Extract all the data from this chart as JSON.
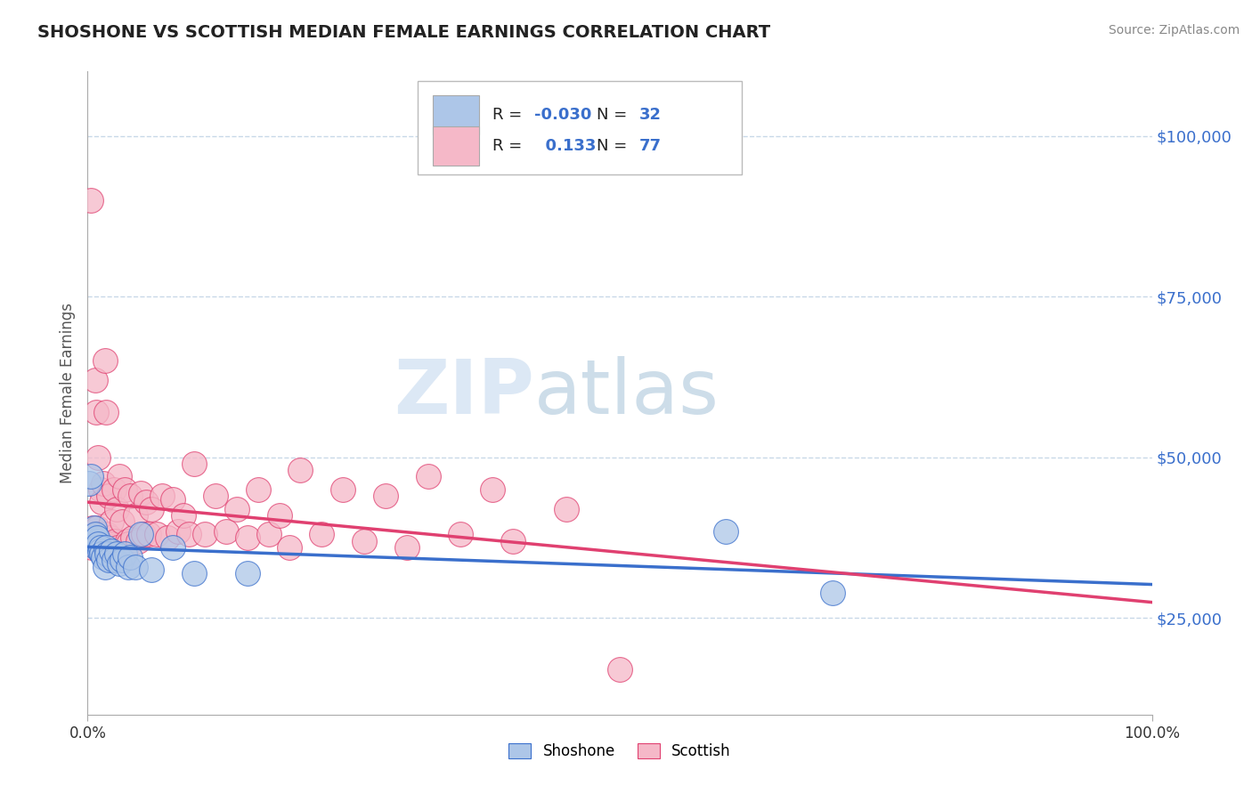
{
  "title": "SHOSHONE VS SCOTTISH MEDIAN FEMALE EARNINGS CORRELATION CHART",
  "source": "Source: ZipAtlas.com",
  "ylabel": "Median Female Earnings",
  "xlim": [
    0.0,
    1.0
  ],
  "ylim": [
    10000,
    110000
  ],
  "yticks": [
    25000,
    50000,
    75000,
    100000
  ],
  "ytick_labels": [
    "$25,000",
    "$50,000",
    "$75,000",
    "$100,000"
  ],
  "xtick_labels": [
    "0.0%",
    "100.0%"
  ],
  "shoshone_color": "#adc6e8",
  "scottish_color": "#f5b8c8",
  "shoshone_line_color": "#3a6fcc",
  "scottish_line_color": "#e04070",
  "shoshone_R": -0.03,
  "shoshone_N": 32,
  "scottish_R": 0.133,
  "scottish_N": 77,
  "background_color": "#ffffff",
  "grid_color": "#c8d8e8",
  "watermark_color": "#dce8f5",
  "shoshone_scatter_x": [
    0.001,
    0.003,
    0.005,
    0.006,
    0.007,
    0.008,
    0.009,
    0.01,
    0.011,
    0.012,
    0.013,
    0.015,
    0.016,
    0.017,
    0.018,
    0.02,
    0.022,
    0.025,
    0.027,
    0.03,
    0.032,
    0.035,
    0.038,
    0.04,
    0.045,
    0.05,
    0.06,
    0.08,
    0.1,
    0.15,
    0.6,
    0.7
  ],
  "shoshone_scatter_y": [
    46000,
    47000,
    37000,
    39000,
    38000,
    36000,
    37500,
    36500,
    35500,
    36000,
    35000,
    34500,
    33000,
    36000,
    35000,
    34000,
    35500,
    34000,
    35000,
    33500,
    34000,
    35000,
    33000,
    34500,
    33000,
    38000,
    32500,
    36000,
    32000,
    32000,
    38500,
    29000
  ],
  "scottish_scatter_x": [
    0.001,
    0.002,
    0.003,
    0.004,
    0.005,
    0.005,
    0.006,
    0.006,
    0.007,
    0.008,
    0.008,
    0.009,
    0.009,
    0.01,
    0.01,
    0.011,
    0.012,
    0.012,
    0.013,
    0.014,
    0.015,
    0.015,
    0.016,
    0.017,
    0.018,
    0.019,
    0.02,
    0.021,
    0.022,
    0.023,
    0.025,
    0.026,
    0.027,
    0.028,
    0.03,
    0.032,
    0.035,
    0.037,
    0.038,
    0.04,
    0.042,
    0.045,
    0.047,
    0.05,
    0.052,
    0.055,
    0.057,
    0.06,
    0.065,
    0.07,
    0.075,
    0.08,
    0.085,
    0.09,
    0.095,
    0.1,
    0.11,
    0.12,
    0.13,
    0.14,
    0.15,
    0.16,
    0.17,
    0.18,
    0.19,
    0.2,
    0.22,
    0.24,
    0.26,
    0.28,
    0.3,
    0.32,
    0.35,
    0.38,
    0.4,
    0.45,
    0.5
  ],
  "scottish_scatter_y": [
    38000,
    37000,
    90000,
    36000,
    38000,
    39000,
    37000,
    38000,
    62000,
    57000,
    38000,
    39000,
    36500,
    50000,
    38000,
    37000,
    45000,
    37000,
    43000,
    38000,
    46000,
    37500,
    65000,
    57000,
    38000,
    36000,
    44000,
    37500,
    40000,
    36500,
    45000,
    37000,
    42000,
    36000,
    47000,
    40000,
    45000,
    37000,
    36500,
    44000,
    37500,
    41000,
    37000,
    44500,
    38000,
    43000,
    38000,
    42000,
    38000,
    44000,
    37500,
    43500,
    38500,
    41000,
    38000,
    49000,
    38000,
    44000,
    38500,
    42000,
    37500,
    45000,
    38000,
    41000,
    36000,
    48000,
    38000,
    45000,
    37000,
    44000,
    36000,
    47000,
    38000,
    45000,
    37000,
    42000,
    17000
  ]
}
